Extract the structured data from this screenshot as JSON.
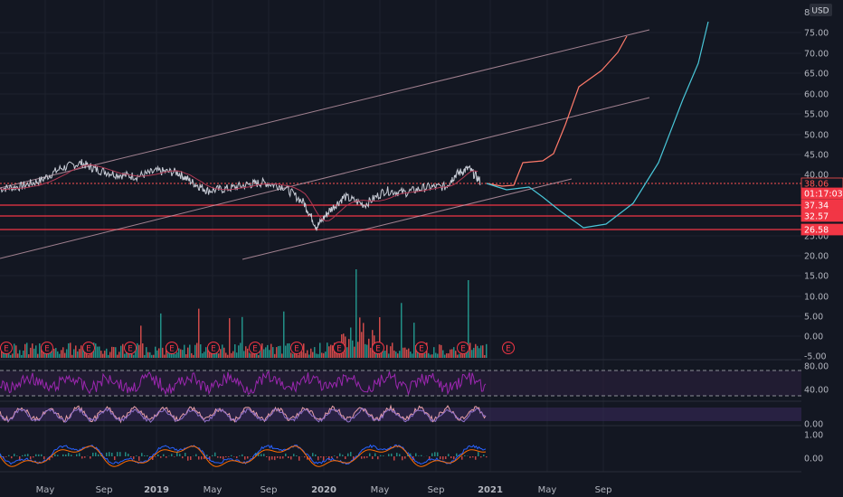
{
  "currency": "USD",
  "price_axis": {
    "ticks": [
      "75.00",
      "70.00",
      "65.00",
      "60.00",
      "55.00",
      "50.00",
      "45.00",
      "40.00",
      "25.00",
      "20.00",
      "15.00",
      "10.00",
      "5.00",
      "0.00",
      "-5.00"
    ],
    "top_label": "8",
    "labels": [
      {
        "text": "38.06",
        "color": "#ff5252",
        "style": "outline"
      },
      {
        "text": "01:17:03",
        "color": "#f23645",
        "style": "fill"
      },
      {
        "text": "37.34",
        "color": "#f23645",
        "style": "fill"
      },
      {
        "text": "32.57",
        "color": "#f23645",
        "style": "fill"
      },
      {
        "text": "26.58",
        "color": "#f23645",
        "style": "fill"
      }
    ]
  },
  "pane_axes": {
    "rsi": [
      "80.00",
      "40.00"
    ],
    "stoch": [
      "0.00"
    ],
    "macd": [
      "1.00",
      "0.00"
    ]
  },
  "time_axis": [
    "May",
    "Sep",
    "2019",
    "May",
    "Sep",
    "2020",
    "May",
    "Sep",
    "2021",
    "May",
    "Sep"
  ],
  "earnings_marker": "E",
  "chart_data": {
    "type": "line",
    "price_series": [
      {
        "t": 0.0,
        "v": 36.5
      },
      {
        "t": 0.04,
        "v": 37.0
      },
      {
        "t": 0.08,
        "v": 38.5
      },
      {
        "t": 0.12,
        "v": 41.5
      },
      {
        "t": 0.16,
        "v": 42.8
      },
      {
        "t": 0.19,
        "v": 41.2
      },
      {
        "t": 0.23,
        "v": 40.0
      },
      {
        "t": 0.27,
        "v": 39.5
      },
      {
        "t": 0.31,
        "v": 40.8
      },
      {
        "t": 0.35,
        "v": 40.5
      },
      {
        "t": 0.38,
        "v": 38.0
      },
      {
        "t": 0.41,
        "v": 36.0
      },
      {
        "t": 0.45,
        "v": 36.5
      },
      {
        "t": 0.49,
        "v": 37.5
      },
      {
        "t": 0.52,
        "v": 38.0
      },
      {
        "t": 0.56,
        "v": 37.0
      },
      {
        "t": 0.6,
        "v": 33.0
      },
      {
        "t": 0.625,
        "v": 27.0
      },
      {
        "t": 0.65,
        "v": 31.0
      },
      {
        "t": 0.68,
        "v": 34.5
      },
      {
        "t": 0.72,
        "v": 32.5
      },
      {
        "t": 0.76,
        "v": 36.0
      },
      {
        "t": 0.8,
        "v": 35.5
      },
      {
        "t": 0.84,
        "v": 36.8
      },
      {
        "t": 0.88,
        "v": 37.0
      },
      {
        "t": 0.9,
        "v": 40.0
      },
      {
        "t": 0.925,
        "v": 41.5
      },
      {
        "t": 0.95,
        "v": 38.06
      }
    ],
    "horizontal_levels": [
      38.06,
      37.34,
      32.57,
      26.58
    ],
    "projections": [
      {
        "color": "#ff7a6a",
        "points": [
          [
            538,
            203
          ],
          [
            555,
            206
          ],
          [
            568,
            205
          ],
          [
            578,
            180
          ],
          [
            600,
            178
          ],
          [
            612,
            170
          ],
          [
            625,
            138
          ],
          [
            640,
            96
          ],
          [
            665,
            78
          ],
          [
            683,
            58
          ],
          [
            693,
            40
          ]
        ]
      },
      {
        "color": "#49c6d8",
        "points": [
          [
            538,
            203
          ],
          [
            560,
            210
          ],
          [
            585,
            207
          ],
          [
            600,
            218
          ],
          [
            620,
            234
          ],
          [
            645,
            252
          ],
          [
            670,
            248
          ],
          [
            700,
            225
          ],
          [
            728,
            180
          ],
          [
            755,
            110
          ],
          [
            772,
            70
          ],
          [
            783,
            24
          ]
        ]
      }
    ]
  }
}
